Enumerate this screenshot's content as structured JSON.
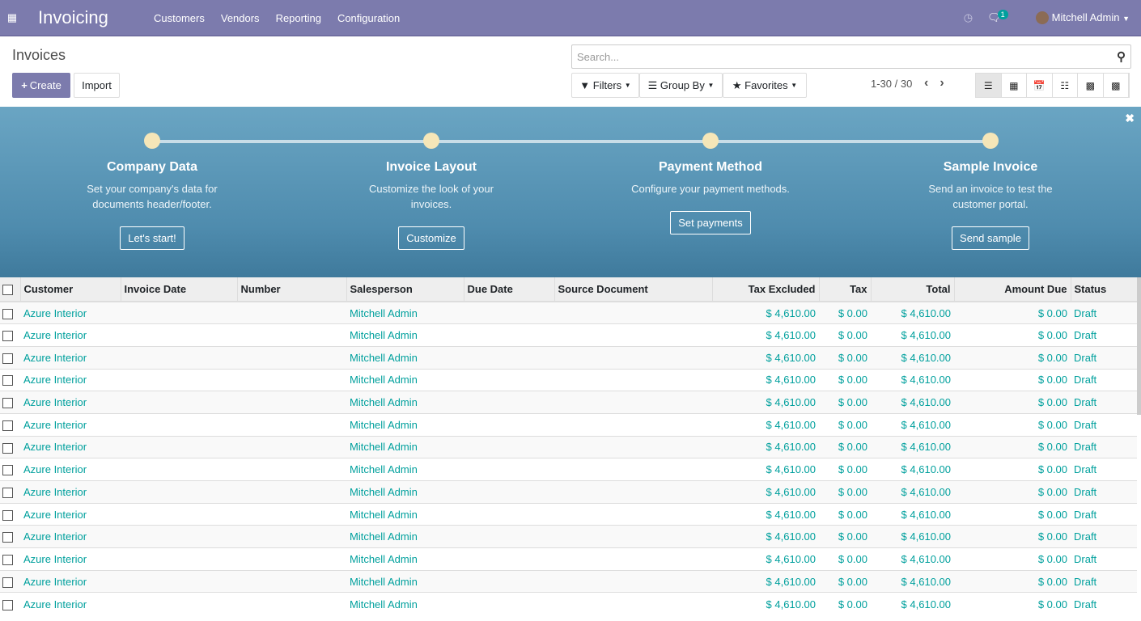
{
  "nav": {
    "app_icon": "apps-grid-icon",
    "app_name": "Invoicing",
    "menu": [
      "Customers",
      "Vendors",
      "Reporting",
      "Configuration"
    ],
    "activity_icon": "clock-icon",
    "chat_icon": "chat-icon",
    "chat_badge": "1",
    "user": "Mitchell Admin"
  },
  "control": {
    "title": "Invoices",
    "create": "Create",
    "import": "Import",
    "search_placeholder": "Search...",
    "filters": "Filters",
    "group_by": "Group By",
    "favorites": "Favorites",
    "pager": "1-30 / 30",
    "views": [
      "list",
      "kanban",
      "calendar",
      "pivot",
      "graph",
      "grid"
    ]
  },
  "banner": {
    "steps": [
      {
        "title": "Company Data",
        "text": "Set your company's data for documents header/footer.",
        "button": "Let's start!"
      },
      {
        "title": "Invoice Layout",
        "text": "Customize the look of your invoices.",
        "button": "Customize"
      },
      {
        "title": "Payment Method",
        "text": "Configure your payment methods.",
        "button": "Set payments"
      },
      {
        "title": "Sample Invoice",
        "text": "Send an invoice to test the customer portal.",
        "button": "Send sample"
      }
    ]
  },
  "table": {
    "columns": [
      "Customer",
      "Invoice Date",
      "Number",
      "Salesperson",
      "Due Date",
      "Source Document",
      "Tax Excluded",
      "Tax",
      "Total",
      "Amount Due",
      "Status"
    ],
    "rows": [
      {
        "customer": "Azure Interior",
        "salesperson": "Mitchell Admin",
        "tax_excluded": "$ 4,610.00",
        "tax": "$ 0.00",
        "total": "$ 4,610.00",
        "amount_due": "$ 0.00",
        "status": "Draft"
      },
      {
        "customer": "Azure Interior",
        "salesperson": "Mitchell Admin",
        "tax_excluded": "$ 4,610.00",
        "tax": "$ 0.00",
        "total": "$ 4,610.00",
        "amount_due": "$ 0.00",
        "status": "Draft"
      },
      {
        "customer": "Azure Interior",
        "salesperson": "Mitchell Admin",
        "tax_excluded": "$ 4,610.00",
        "tax": "$ 0.00",
        "total": "$ 4,610.00",
        "amount_due": "$ 0.00",
        "status": "Draft"
      },
      {
        "customer": "Azure Interior",
        "salesperson": "Mitchell Admin",
        "tax_excluded": "$ 4,610.00",
        "tax": "$ 0.00",
        "total": "$ 4,610.00",
        "amount_due": "$ 0.00",
        "status": "Draft"
      },
      {
        "customer": "Azure Interior",
        "salesperson": "Mitchell Admin",
        "tax_excluded": "$ 4,610.00",
        "tax": "$ 0.00",
        "total": "$ 4,610.00",
        "amount_due": "$ 0.00",
        "status": "Draft"
      },
      {
        "customer": "Azure Interior",
        "salesperson": "Mitchell Admin",
        "tax_excluded": "$ 4,610.00",
        "tax": "$ 0.00",
        "total": "$ 4,610.00",
        "amount_due": "$ 0.00",
        "status": "Draft"
      },
      {
        "customer": "Azure Interior",
        "salesperson": "Mitchell Admin",
        "tax_excluded": "$ 4,610.00",
        "tax": "$ 0.00",
        "total": "$ 4,610.00",
        "amount_due": "$ 0.00",
        "status": "Draft"
      },
      {
        "customer": "Azure Interior",
        "salesperson": "Mitchell Admin",
        "tax_excluded": "$ 4,610.00",
        "tax": "$ 0.00",
        "total": "$ 4,610.00",
        "amount_due": "$ 0.00",
        "status": "Draft"
      },
      {
        "customer": "Azure Interior",
        "salesperson": "Mitchell Admin",
        "tax_excluded": "$ 4,610.00",
        "tax": "$ 0.00",
        "total": "$ 4,610.00",
        "amount_due": "$ 0.00",
        "status": "Draft"
      },
      {
        "customer": "Azure Interior",
        "salesperson": "Mitchell Admin",
        "tax_excluded": "$ 4,610.00",
        "tax": "$ 0.00",
        "total": "$ 4,610.00",
        "amount_due": "$ 0.00",
        "status": "Draft"
      },
      {
        "customer": "Azure Interior",
        "salesperson": "Mitchell Admin",
        "tax_excluded": "$ 4,610.00",
        "tax": "$ 0.00",
        "total": "$ 4,610.00",
        "amount_due": "$ 0.00",
        "status": "Draft"
      },
      {
        "customer": "Azure Interior",
        "salesperson": "Mitchell Admin",
        "tax_excluded": "$ 4,610.00",
        "tax": "$ 0.00",
        "total": "$ 4,610.00",
        "amount_due": "$ 0.00",
        "status": "Draft"
      },
      {
        "customer": "Azure Interior",
        "salesperson": "Mitchell Admin",
        "tax_excluded": "$ 4,610.00",
        "tax": "$ 0.00",
        "total": "$ 4,610.00",
        "amount_due": "$ 0.00",
        "status": "Draft"
      },
      {
        "customer": "Azure Interior",
        "salesperson": "Mitchell Admin",
        "tax_excluded": "$ 4,610.00",
        "tax": "$ 0.00",
        "total": "$ 4,610.00",
        "amount_due": "$ 0.00",
        "status": "Draft"
      }
    ]
  },
  "colors": {
    "brand": "#7c7bad",
    "link": "#00a09d"
  }
}
